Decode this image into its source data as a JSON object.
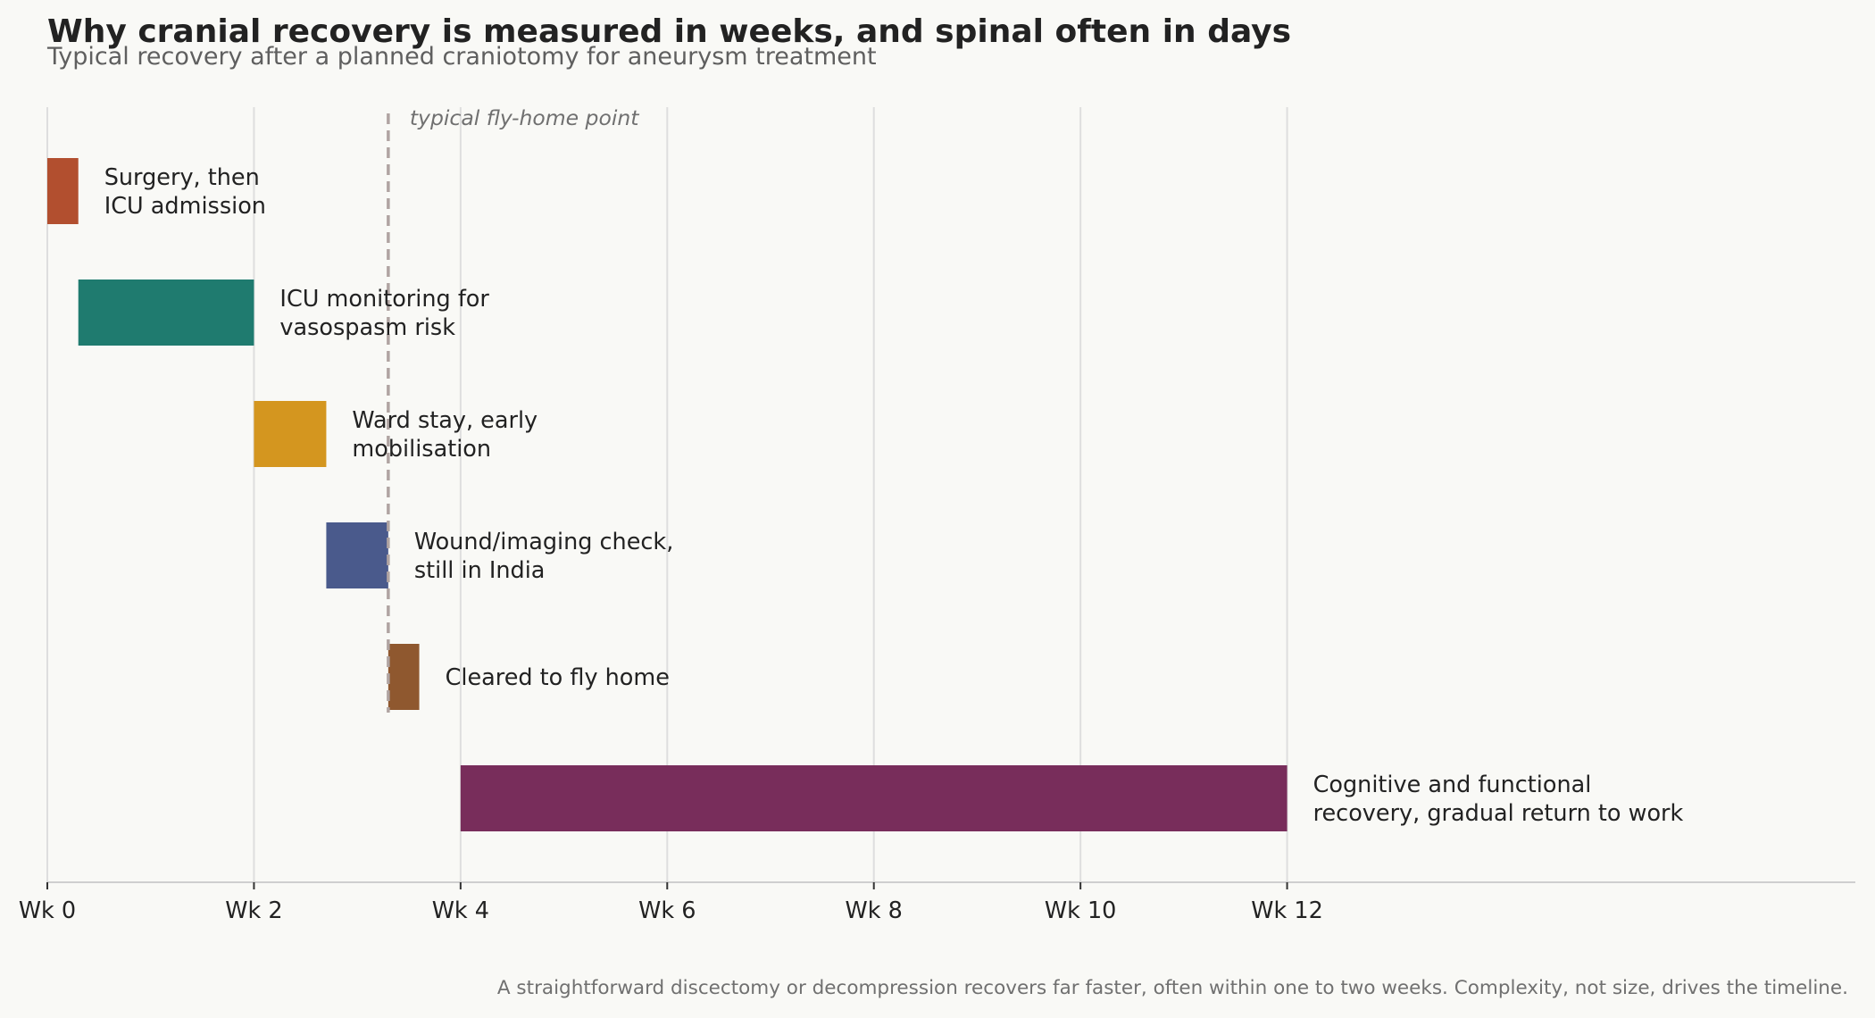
{
  "chart_data": {
    "type": "gantt",
    "title": "Why cranial recovery is measured in weeks, and spinal often in days",
    "subtitle": "Typical recovery after a planned craniotomy for aneurysm treatment",
    "footnote": "A straightforward discectomy or decompression recovers far faster, often within one to two weeks. Complexity, not size, drives the timeline.",
    "x_axis": {
      "range": [
        0,
        17.5
      ],
      "ticks": [
        0,
        2,
        4,
        6,
        8,
        10,
        12
      ],
      "tick_labels": [
        "Wk 0",
        "Wk 2",
        "Wk 4",
        "Wk 6",
        "Wk 8",
        "Wk 10",
        "Wk 12"
      ],
      "unit": "weeks"
    },
    "grid": "vertical",
    "reference_line": {
      "x": 3.3,
      "label": "typical fly-home point",
      "style": "dashed",
      "color": "#b0a4a2"
    },
    "tasks": [
      {
        "label_lines": [
          "Surgery, then",
          "ICU admission"
        ],
        "start": 0,
        "end": 0.3,
        "color": "#b24f2f"
      },
      {
        "label_lines": [
          "ICU monitoring for",
          "vasospasm risk"
        ],
        "start": 0.3,
        "end": 2.0,
        "color": "#1f7b6f"
      },
      {
        "label_lines": [
          "Ward stay, early",
          "mobilisation"
        ],
        "start": 2.0,
        "end": 2.7,
        "color": "#d4961f"
      },
      {
        "label_lines": [
          "Wound/imaging check,",
          "still in India"
        ],
        "start": 2.7,
        "end": 3.3,
        "color": "#4a5a8c"
      },
      {
        "label_lines": [
          "Cleared to fly home"
        ],
        "start": 3.3,
        "end": 3.6,
        "color": "#8f582f"
      },
      {
        "label_lines": [
          "Cognitive and functional",
          "recovery, gradual return to work"
        ],
        "start": 4.0,
        "end": 12.0,
        "color": "#782d5b"
      }
    ],
    "colors": {
      "background": "#f9f9f6",
      "title": "#222222",
      "subtitle": "#5f5f5f",
      "grid": "#dedede",
      "axis": "#cfcfcf",
      "label": "#222222",
      "footnote": "#707070"
    }
  }
}
